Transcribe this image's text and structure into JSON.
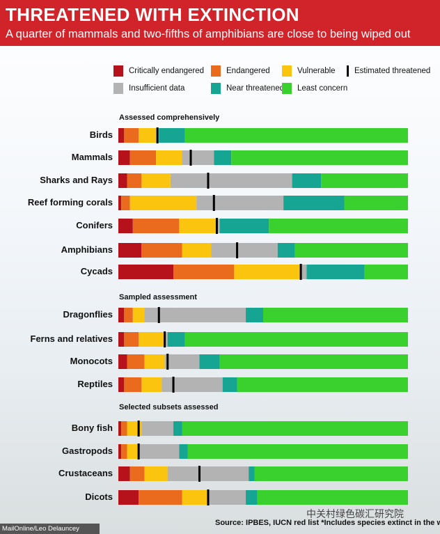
{
  "header": {
    "title": "THREATENED WITH EXTINCTION",
    "subtitle": "A quarter of mammals and two-fifths of amphibians are close to being wiped out"
  },
  "legend": {
    "critically_endangered": "Critically endangered",
    "endangered": "Endangered",
    "vulnerable": "Vulnerable",
    "estimated_threatened": "Estimated threatened",
    "insufficient_data": "Insufficient data",
    "near_threatened": "Near threatened",
    "least_concern": "Least concern"
  },
  "colors": {
    "critically_endangered": "#b5121b",
    "endangered": "#ea6b1e",
    "vulnerable": "#fbc40f",
    "insufficient_data": "#b3b3b3",
    "near_threatened": "#16a592",
    "least_concern": "#3ad12f",
    "estimated_threatened": "#000000"
  },
  "footer": {
    "source": "Source: IPBES, IUCN red list  *Includes species extinct in the wild",
    "credit": "MailOnline/Leo Delauncey",
    "watermark": "中关村绿色碳汇研究院"
  },
  "chart_data": {
    "type": "bar",
    "orientation": "horizontal",
    "stacked": true,
    "unit": "percent of species",
    "segments": [
      "Critically endangered",
      "Endangered",
      "Vulnerable",
      "Insufficient data",
      "Near threatened",
      "Least concern"
    ],
    "xlim": [
      0,
      100
    ],
    "groups": [
      {
        "name": "Assessed comprehensively",
        "rows": [
          {
            "category": "Birds",
            "values": [
              2,
              5,
              6,
              1,
              9,
              77
            ],
            "estimated_threatened": 13.5
          },
          {
            "category": "Mammals",
            "values": [
              4,
              9,
              9,
              11,
              6,
              61
            ],
            "estimated_threatened": 25
          },
          {
            "category": "Sharks and Rays",
            "values": [
              3,
              5,
              10,
              42,
              10,
              30
            ],
            "estimated_threatened": 31
          },
          {
            "category": "Reef forming corals",
            "values": [
              1,
              3,
              23,
              30,
              21,
              22
            ],
            "estimated_threatened": 33
          },
          {
            "category": "Conifers",
            "values": [
              5,
              16,
              13,
              1,
              17,
              48
            ],
            "estimated_threatened": 34
          },
          {
            "category": "Amphibians",
            "values": [
              8,
              14,
              10,
              23,
              6,
              39
            ],
            "estimated_threatened": 41
          },
          {
            "category": "Cycads",
            "values": [
              19,
              21,
              23,
              2,
              20,
              15
            ],
            "estimated_threatened": 63
          }
        ]
      },
      {
        "name": "Sampled assessment",
        "rows": [
          {
            "category": "Dragonflies",
            "values": [
              2,
              3,
              4,
              35,
              6,
              50
            ],
            "estimated_threatened": 14
          },
          {
            "category": "Ferns and relatives",
            "values": [
              2,
              5,
              9,
              1,
              6,
              77
            ],
            "estimated_threatened": 16
          },
          {
            "category": "Monocots",
            "values": [
              3,
              6,
              7,
              12,
              7,
              65
            ],
            "estimated_threatened": 17
          },
          {
            "category": "Reptiles",
            "values": [
              2,
              6,
              7,
              21,
              5,
              59
            ],
            "estimated_threatened": 19
          }
        ]
      },
      {
        "name": "Selected subsets assessed",
        "rows": [
          {
            "category": "Bony fish",
            "values": [
              1,
              2,
              5,
              11,
              3,
              78
            ],
            "estimated_threatened": 7
          },
          {
            "category": "Gastropods",
            "values": [
              1,
              2,
              4,
              14,
              3,
              76
            ],
            "estimated_threatened": 7
          },
          {
            "category": "Crustaceans",
            "values": [
              4,
              5,
              8,
              28,
              2,
              53
            ],
            "estimated_threatened": 28
          },
          {
            "category": "Dicots",
            "values": [
              7,
              15,
              9,
              13,
              4,
              52
            ],
            "estimated_threatened": 31
          }
        ]
      }
    ]
  }
}
